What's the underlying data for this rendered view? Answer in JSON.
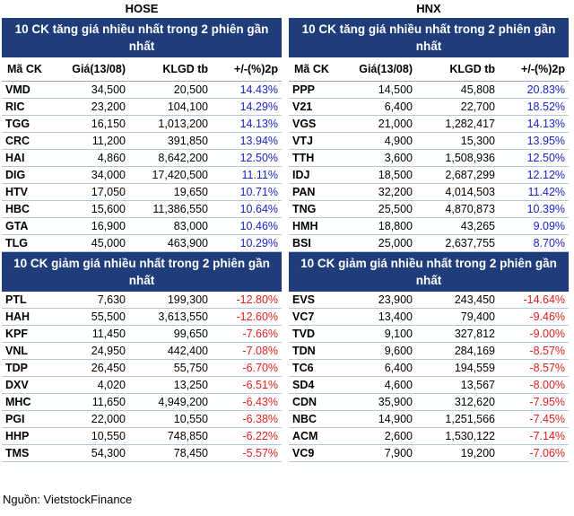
{
  "hose": {
    "market": "HOSE",
    "gain_title": "10 CK tăng giá nhiều nhất trong 2 phiên gần nhất",
    "loss_title": "10 CK giảm giá nhiều nhất trong 2 phiên gần nhất",
    "columns": [
      "Mã CK",
      "Giá(13/08)",
      "KLGD tb",
      "+/-(%)2p"
    ],
    "gainers": [
      [
        "VMD",
        "34,500",
        "20,500",
        "14.43%"
      ],
      [
        "RIC",
        "23,200",
        "104,100",
        "14.29%"
      ],
      [
        "TGG",
        "16,150",
        "1,013,200",
        "14.13%"
      ],
      [
        "CRC",
        "11,200",
        "391,850",
        "13.94%"
      ],
      [
        "HAI",
        "4,860",
        "8,642,200",
        "12.50%"
      ],
      [
        "DIG",
        "34,000",
        "17,420,500",
        "11.11%"
      ],
      [
        "HTV",
        "17,050",
        "19,650",
        "10.71%"
      ],
      [
        "HBC",
        "15,600",
        "11,386,550",
        "10.64%"
      ],
      [
        "GTA",
        "16,900",
        "83,000",
        "10.46%"
      ],
      [
        "TLG",
        "45,000",
        "463,900",
        "10.29%"
      ]
    ],
    "losers": [
      [
        "PTL",
        "7,630",
        "199,300",
        "-12.80%"
      ],
      [
        "HAH",
        "55,500",
        "3,613,550",
        "-12.60%"
      ],
      [
        "KPF",
        "11,450",
        "99,650",
        "-7.66%"
      ],
      [
        "VNL",
        "24,950",
        "442,400",
        "-7.08%"
      ],
      [
        "TDP",
        "26,450",
        "55,750",
        "-6.70%"
      ],
      [
        "DXV",
        "4,020",
        "13,250",
        "-6.51%"
      ],
      [
        "MHC",
        "11,650",
        "4,949,200",
        "-6.43%"
      ],
      [
        "PGI",
        "22,000",
        "10,550",
        "-6.38%"
      ],
      [
        "HHP",
        "10,550",
        "748,850",
        "-6.22%"
      ],
      [
        "TMS",
        "54,300",
        "78,450",
        "-5.57%"
      ]
    ]
  },
  "hnx": {
    "market": "HNX",
    "gain_title": "10 CK tăng giá nhiều nhất trong 2 phiên gần nhất",
    "loss_title": "10 CK giảm giá nhiều nhất trong 2 phiên gần nhất",
    "columns": [
      "Mã CK",
      "Giá(13/08)",
      "KLGD tb",
      "+/-(%)2p"
    ],
    "gainers": [
      [
        "PPP",
        "14,500",
        "45,808",
        "20.83%"
      ],
      [
        "V21",
        "6,400",
        "22,700",
        "18.52%"
      ],
      [
        "VGS",
        "21,000",
        "1,282,417",
        "14.13%"
      ],
      [
        "VTJ",
        "4,900",
        "15,300",
        "13.95%"
      ],
      [
        "TTH",
        "3,600",
        "1,508,936",
        "12.50%"
      ],
      [
        "IDJ",
        "18,500",
        "2,687,299",
        "12.12%"
      ],
      [
        "PAN",
        "32,200",
        "4,014,503",
        "11.42%"
      ],
      [
        "TNG",
        "25,500",
        "4,870,873",
        "10.39%"
      ],
      [
        "HMH",
        "18,800",
        "43,265",
        "9.09%"
      ],
      [
        "BSI",
        "25,000",
        "2,637,755",
        "8.70%"
      ]
    ],
    "losers": [
      [
        "EVS",
        "23,900",
        "243,450",
        "-14.64%"
      ],
      [
        "VC7",
        "13,400",
        "79,400",
        "-9.46%"
      ],
      [
        "TVD",
        "9,100",
        "327,812",
        "-9.00%"
      ],
      [
        "TDN",
        "9,600",
        "284,169",
        "-8.57%"
      ],
      [
        "TC6",
        "6,400",
        "194,559",
        "-8.57%"
      ],
      [
        "SD4",
        "4,600",
        "13,567",
        "-8.00%"
      ],
      [
        "CDN",
        "35,900",
        "312,620",
        "-7.95%"
      ],
      [
        "NBC",
        "14,900",
        "1,251,566",
        "-7.45%"
      ],
      [
        "ACM",
        "2,600",
        "1,530,122",
        "-7.14%"
      ],
      [
        "VC9",
        "7,900",
        "19,200",
        "-7.06%"
      ]
    ]
  },
  "source": "Nguồn: VietstockFinance",
  "colors": {
    "header_bg": "#1f3d7a",
    "positive": "#1a23c8",
    "negative": "#e0201e"
  }
}
